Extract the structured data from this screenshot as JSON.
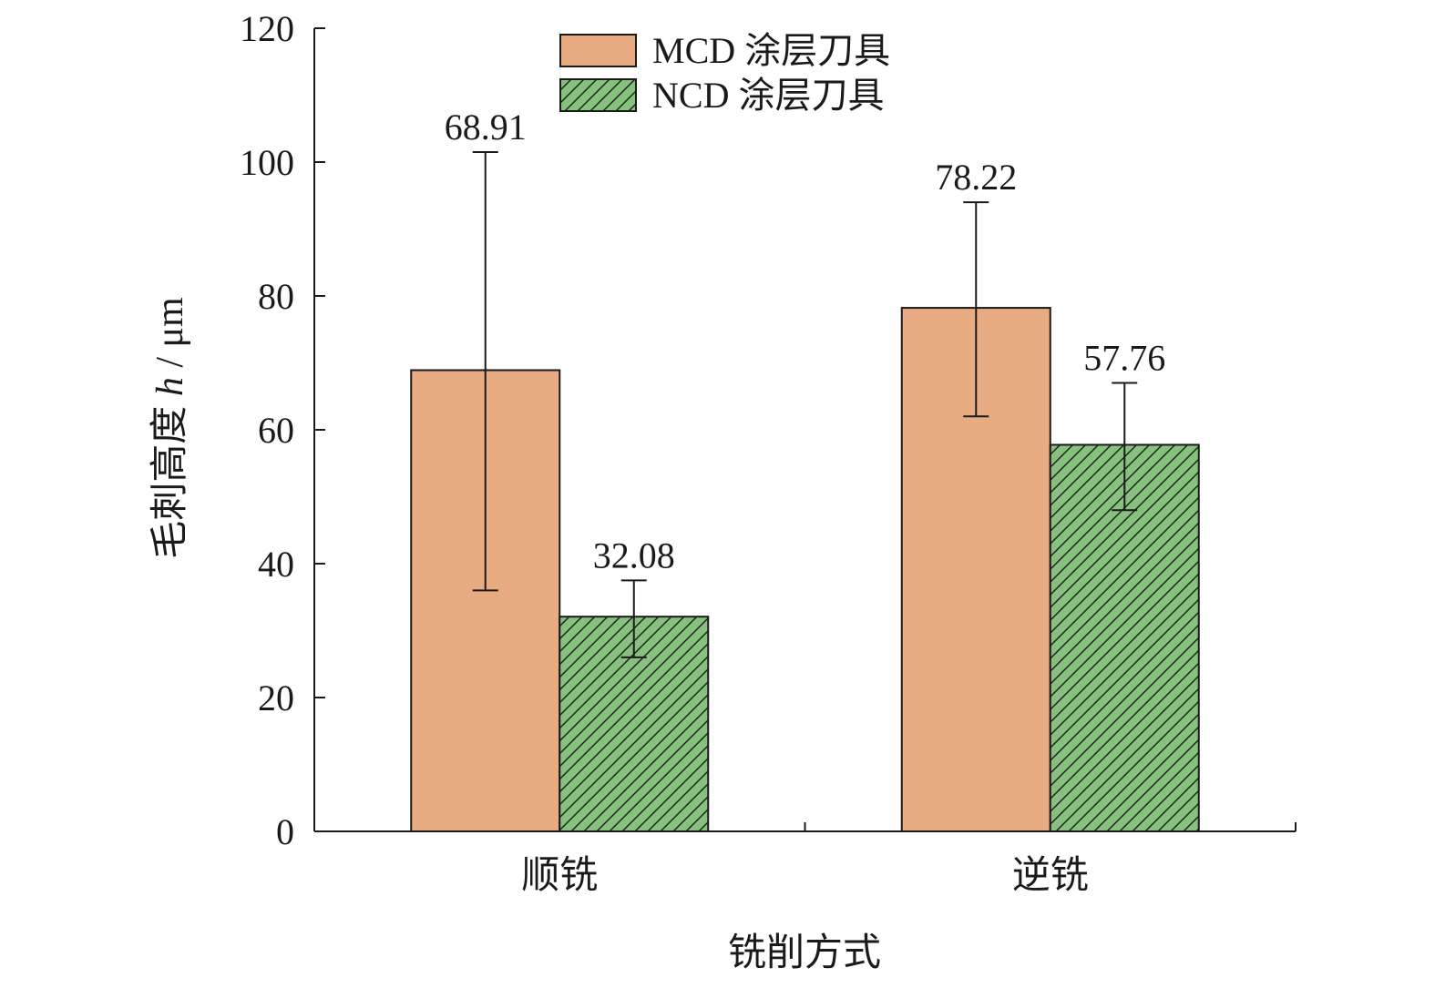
{
  "chart_data": {
    "type": "bar",
    "xlabel": "铣削方式",
    "ylabel": "毛刺高度 h / μm",
    "ylabel_parts": {
      "prefix": "毛刺高度 ",
      "var": "h",
      "suffix": " / μm"
    },
    "categories": [
      "顺铣",
      "逆铣"
    ],
    "ylim": [
      0,
      120
    ],
    "yticks": [
      0,
      20,
      40,
      60,
      80,
      100,
      120
    ],
    "grid": false,
    "legend_position": "top-center",
    "series": [
      {
        "name": "MCD 涂层刀具",
        "values": [
          68.91,
          78.22
        ],
        "value_labels": [
          "68.91",
          "78.22"
        ],
        "error_low": [
          36.0,
          62.0
        ],
        "error_high": [
          101.5,
          94.0
        ],
        "color": "#E8AB82",
        "pattern": "solid"
      },
      {
        "name": "NCD 涂层刀具",
        "values": [
          32.08,
          57.76
        ],
        "value_labels": [
          "32.08",
          "57.76"
        ],
        "error_low": [
          26.0,
          48.0
        ],
        "error_high": [
          37.5,
          67.0
        ],
        "color": "#86C17E",
        "pattern": "diagonal-hatch"
      }
    ]
  }
}
